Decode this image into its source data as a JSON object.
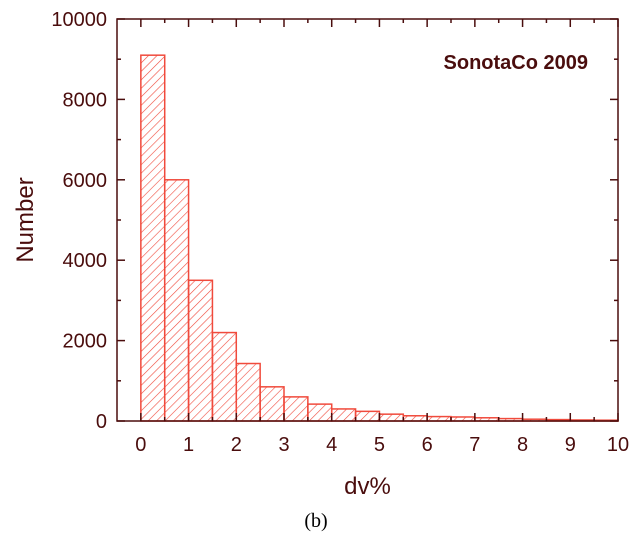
{
  "chart_data": {
    "type": "bar",
    "title": "",
    "annotation": "SonotaCo 2009",
    "xlabel": "dv%",
    "ylabel": "Number",
    "caption": "(b)",
    "xlim": [
      -0.5,
      10
    ],
    "ylim": [
      0,
      10000
    ],
    "bin_width": 0.5,
    "bin_starts": [
      -0.5,
      0,
      0.5,
      1,
      1.5,
      2,
      2.5,
      3,
      3.5,
      4,
      4.5,
      5,
      5.5,
      6,
      6.5,
      7,
      7.5,
      8,
      8.5,
      9,
      9.5
    ],
    "values": [
      0,
      9100,
      6000,
      3500,
      2200,
      1430,
      850,
      600,
      420,
      300,
      240,
      170,
      130,
      110,
      100,
      80,
      60,
      45,
      35,
      25,
      20
    ],
    "xticks": [
      "0",
      "1",
      "2",
      "3",
      "4",
      "5",
      "6",
      "7",
      "8",
      "9",
      "10"
    ],
    "yticks": [
      "0",
      "2000",
      "4000",
      "6000",
      "8000",
      "10000"
    ],
    "grid": false,
    "colors": {
      "bar": "#f04a3c",
      "axis": "#4a0d0d",
      "text": "#4a0d0d"
    }
  }
}
